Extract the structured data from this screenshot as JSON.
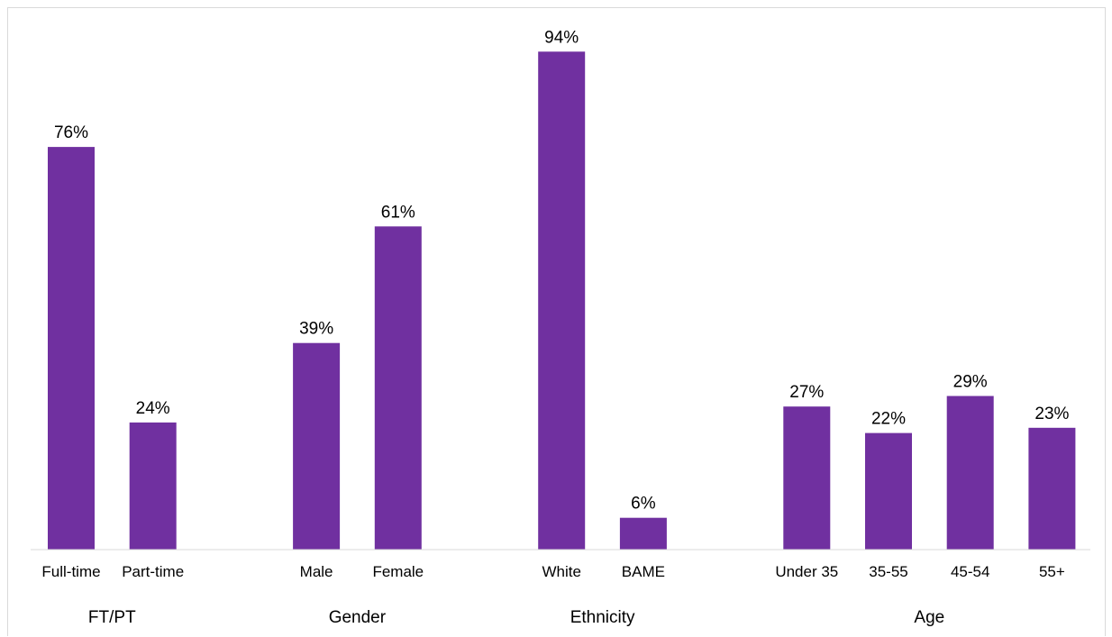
{
  "chart_data": {
    "type": "bar",
    "title": "",
    "xlabel": "",
    "ylabel": "",
    "ylim": [
      0,
      100
    ],
    "grid": false,
    "legend": "none",
    "bar_color": "#7030a0",
    "axis_color": "#d9d9d9",
    "groups": [
      {
        "label": "FT/PT",
        "categories": [
          "Full-time",
          "Part-time"
        ],
        "values": [
          76,
          24
        ],
        "labels": [
          "76%",
          "24%"
        ]
      },
      {
        "label": "Gender",
        "categories": [
          "Male",
          "Female"
        ],
        "values": [
          39,
          61
        ],
        "labels": [
          "39%",
          "61%"
        ]
      },
      {
        "label": "Ethnicity",
        "categories": [
          "White",
          "BAME"
        ],
        "values": [
          94,
          6
        ],
        "labels": [
          "94%",
          "6%"
        ]
      },
      {
        "label": "Age",
        "categories": [
          "Under 35",
          "35-55",
          "45-54",
          "55+"
        ],
        "values": [
          27,
          22,
          29,
          23
        ],
        "labels": [
          "27%",
          "22%",
          "29%",
          "23%"
        ]
      }
    ]
  }
}
